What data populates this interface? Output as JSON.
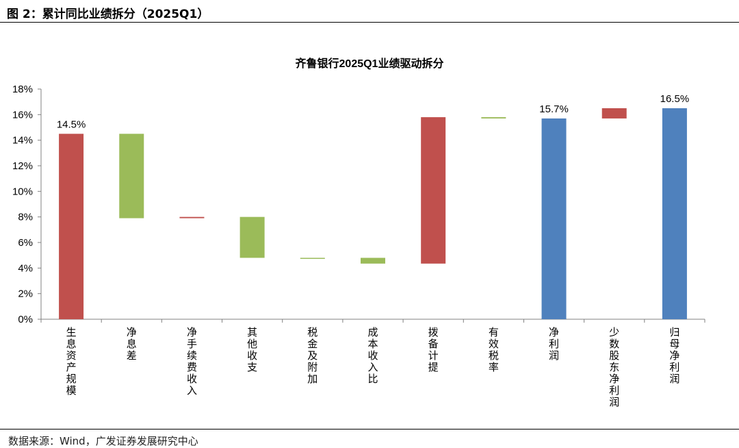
{
  "figure_header": "图 2：累计同比业绩拆分（2025Q1）",
  "source_note": "数据来源：Wind，广发证券发展研究中心",
  "chart_data": {
    "type": "bar",
    "subtype": "waterfall",
    "title": "齐鲁银行2025Q1业绩驱动拆分",
    "ylim": [
      0,
      18
    ],
    "yticks": [
      0,
      2,
      4,
      6,
      8,
      10,
      12,
      14,
      16,
      18
    ],
    "ytick_format": "percent",
    "grid": false,
    "categories": [
      "生息资产规模",
      "净息差",
      "净手续费收入",
      "其他收支",
      "税金及附加",
      "成本收入比",
      "拨备计提",
      "有效税率",
      "净利润",
      "少数股东净利润",
      "归母净利润"
    ],
    "bars": [
      {
        "category": "生息资产规模",
        "low": 0,
        "high": 14.5,
        "color": "#c0504d",
        "label": "14.5%"
      },
      {
        "category": "净息差",
        "low": 7.9,
        "high": 14.5,
        "color": "#9bbb59",
        "label": ""
      },
      {
        "category": "净手续费收入",
        "low": 7.9,
        "high": 8.0,
        "color": "#c0504d",
        "label": ""
      },
      {
        "category": "其他收支",
        "low": 4.8,
        "high": 8.0,
        "color": "#9bbb59",
        "label": ""
      },
      {
        "category": "税金及附加",
        "low": 4.75,
        "high": 4.8,
        "color": "#9bbb59",
        "label": ""
      },
      {
        "category": "成本收入比",
        "low": 4.35,
        "high": 4.8,
        "color": "#9bbb59",
        "label": ""
      },
      {
        "category": "拨备计提",
        "low": 4.35,
        "high": 15.8,
        "color": "#c0504d",
        "label": ""
      },
      {
        "category": "有效税率",
        "low": 15.7,
        "high": 15.8,
        "color": "#9bbb59",
        "label": ""
      },
      {
        "category": "净利润",
        "low": 0,
        "high": 15.7,
        "color": "#4f81bd",
        "label": "15.7%"
      },
      {
        "category": "少数股东净利润",
        "low": 15.7,
        "high": 16.5,
        "color": "#c0504d",
        "label": ""
      },
      {
        "category": "归母净利润",
        "low": 0,
        "high": 16.5,
        "color": "#4f81bd",
        "label": "16.5%"
      }
    ]
  }
}
